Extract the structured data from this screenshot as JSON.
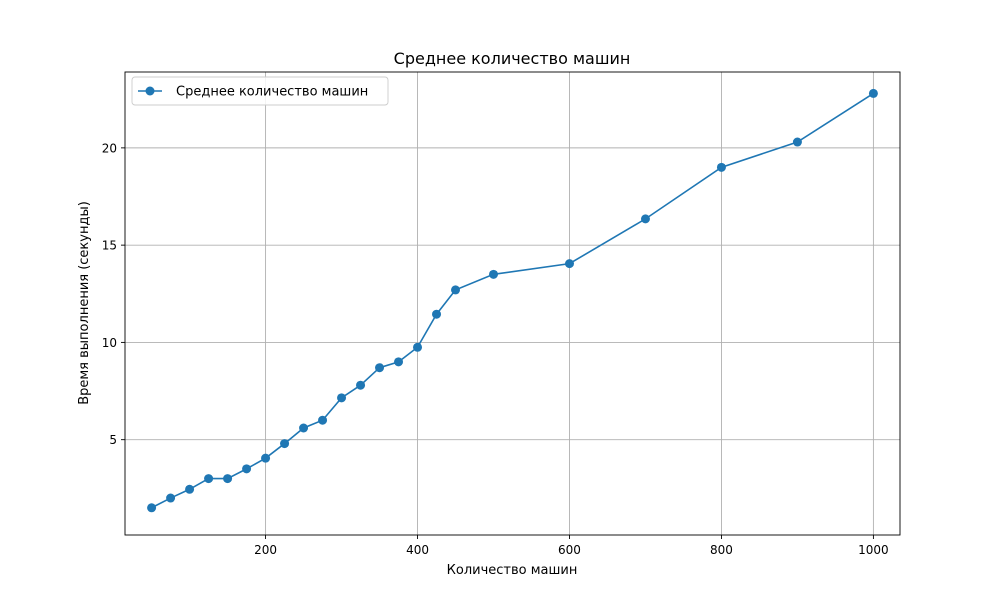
{
  "chart_data": {
    "type": "line",
    "title": "Среднее количество машин",
    "xlabel": "Количество машин",
    "ylabel": "Время выполнения (секунды)",
    "xlim": [
      15,
      1035
    ],
    "ylim": [
      0.1,
      23.9
    ],
    "xticks": [
      200,
      400,
      600,
      800,
      1000
    ],
    "yticks": [
      5,
      10,
      15,
      20
    ],
    "grid": true,
    "legend_position": "top-left",
    "series": [
      {
        "name": "Среднее количество машин",
        "color": "#1f77b4",
        "marker": "circle",
        "x": [
          50,
          75,
          100,
          125,
          150,
          175,
          200,
          225,
          250,
          275,
          300,
          325,
          350,
          375,
          400,
          425,
          450,
          500,
          600,
          700,
          800,
          900,
          1000
        ],
        "y": [
          1.5,
          2.0,
          2.45,
          3.0,
          3.0,
          3.5,
          4.05,
          4.8,
          5.6,
          6.0,
          7.15,
          7.8,
          8.7,
          9.0,
          9.75,
          11.45,
          12.7,
          13.5,
          14.05,
          16.35,
          19.0,
          20.3,
          22.8
        ]
      }
    ]
  }
}
